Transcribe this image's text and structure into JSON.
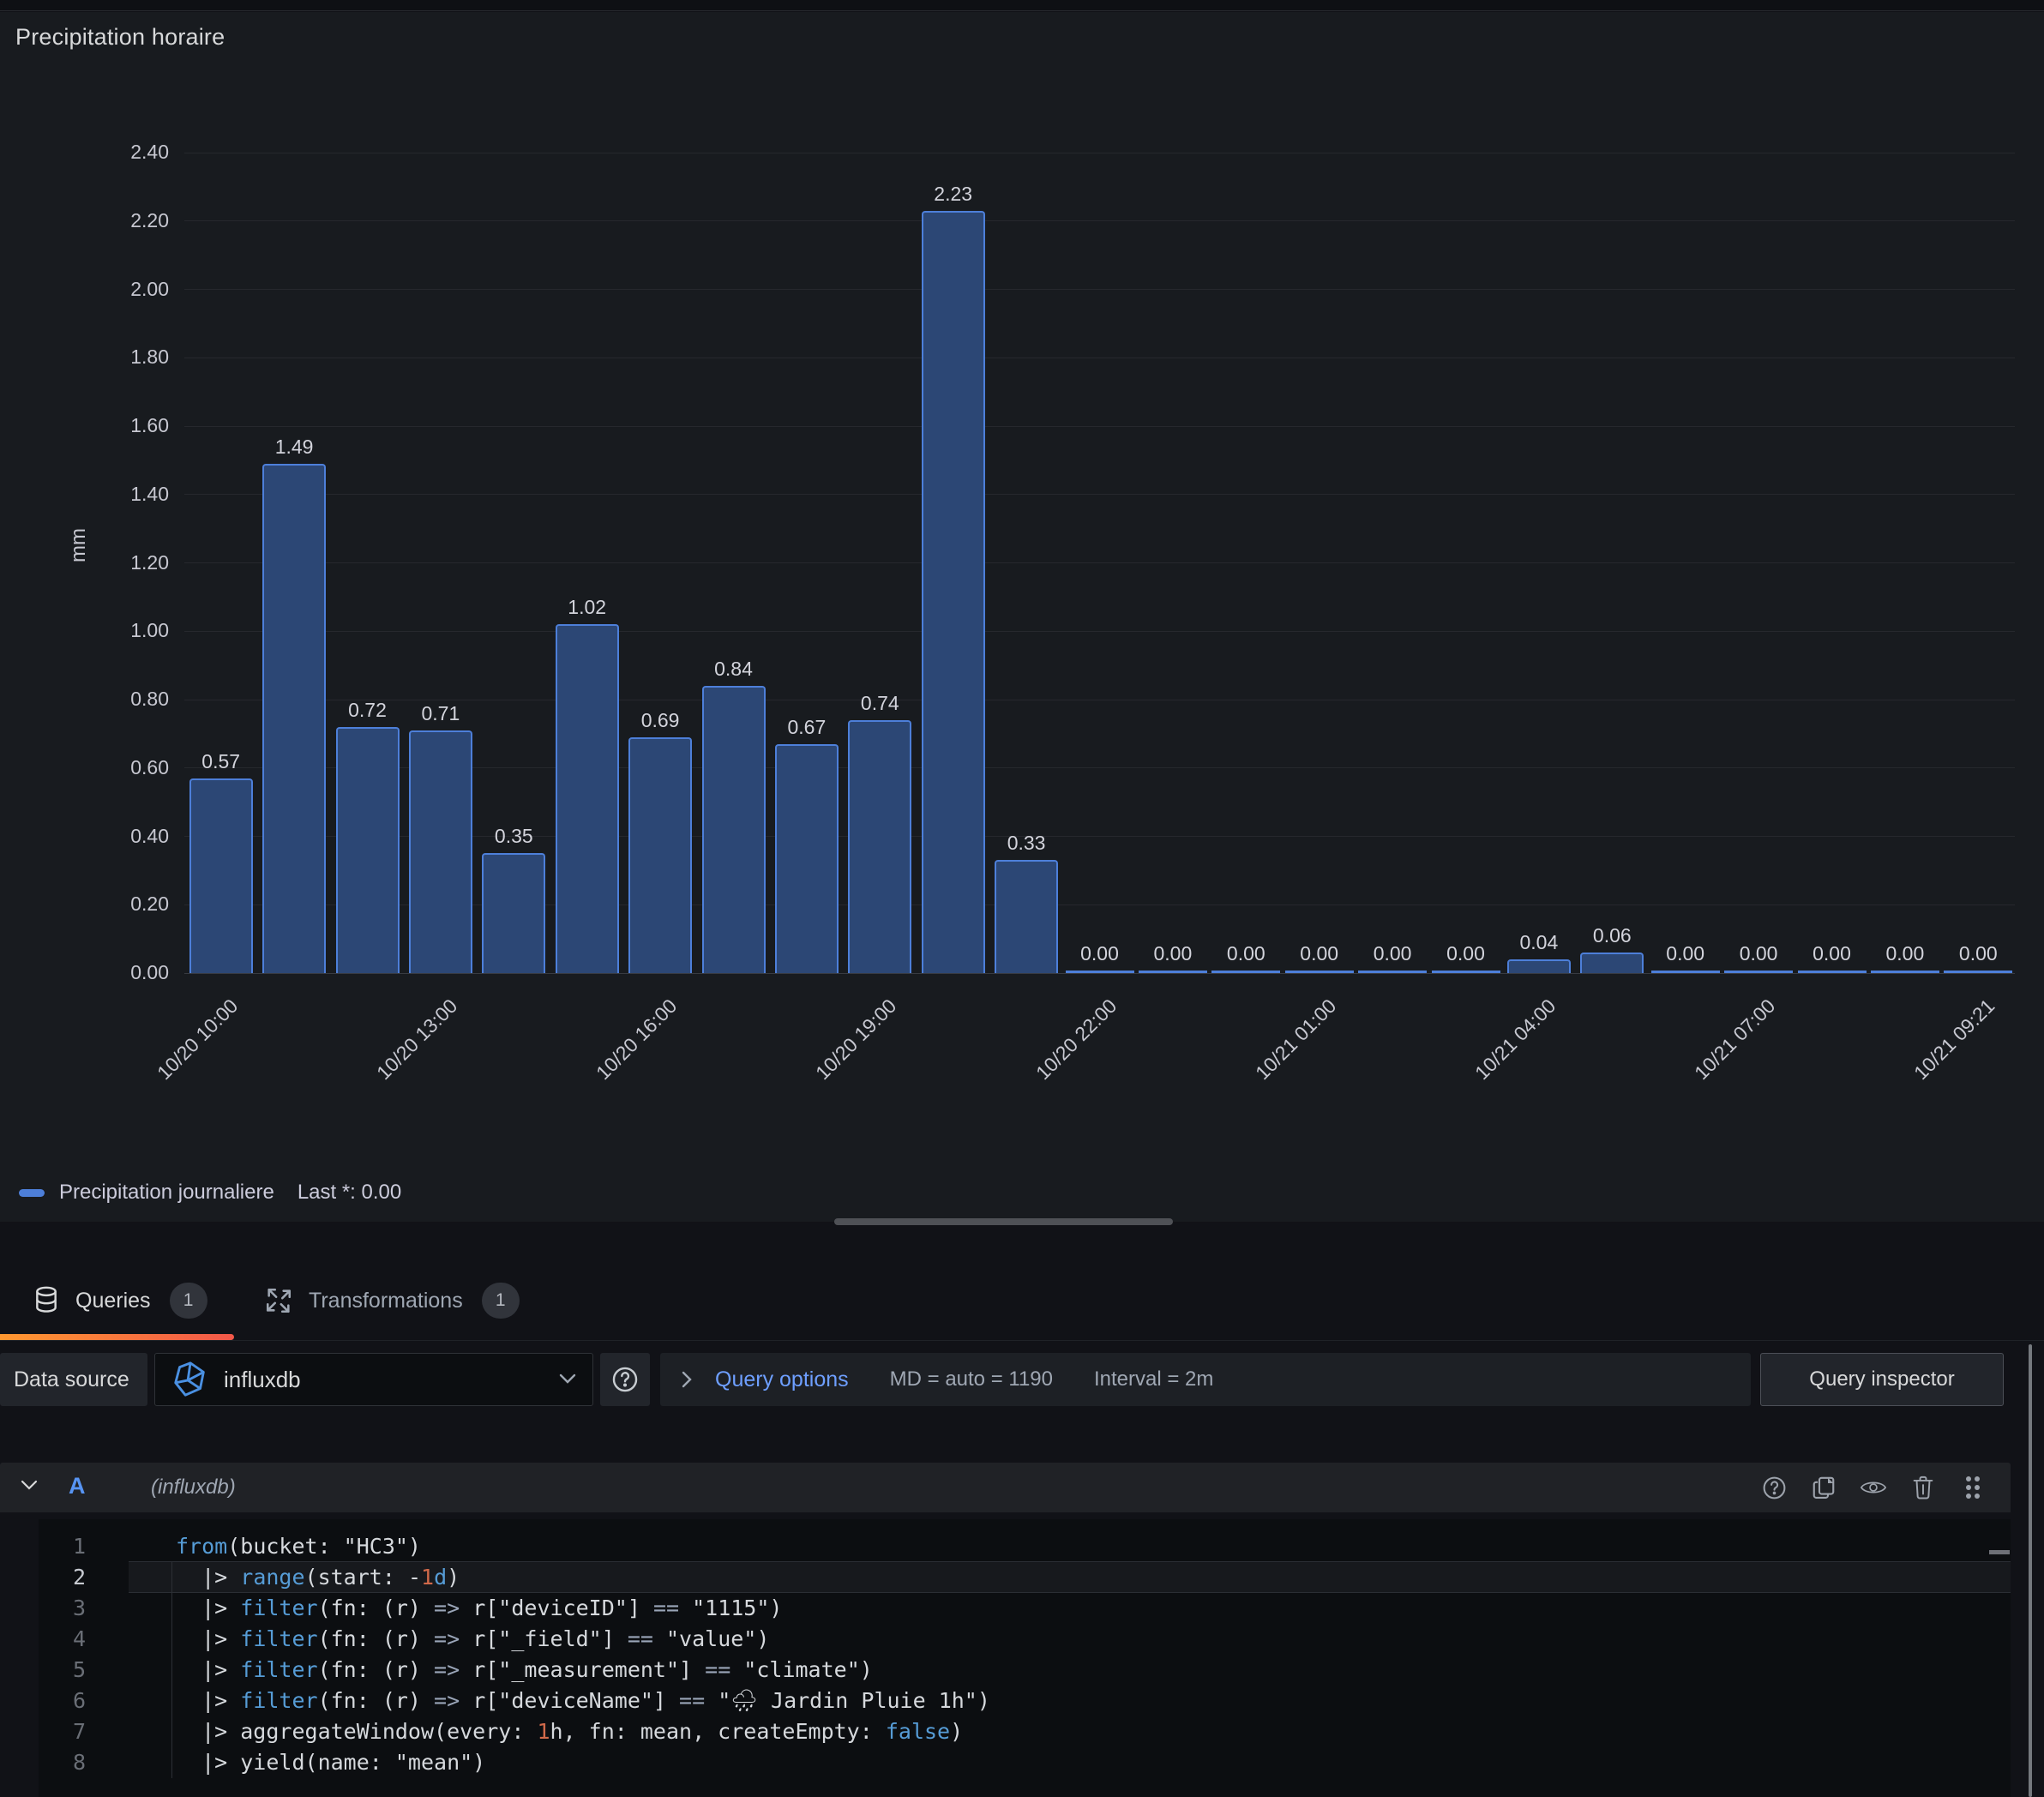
{
  "panel": {
    "title": "Precipitation horaire",
    "legend_label": "Precipitation journaliere",
    "legend_stat": "Last *: 0.00"
  },
  "chart_data": {
    "type": "bar",
    "title": "Precipitation horaire",
    "ylabel": "mm",
    "ylim": [
      0,
      2.4
    ],
    "y_ticks": [
      "2.40",
      "2.20",
      "2.00",
      "1.80",
      "1.60",
      "1.40",
      "1.20",
      "1.00",
      "0.80",
      "0.60",
      "0.40",
      "0.20",
      "0.00"
    ],
    "grid": true,
    "legend_position": "bottom-left",
    "series": [
      {
        "name": "Precipitation journaliere",
        "stat": "Last *: 0.00",
        "values": [
          0.57,
          1.49,
          0.72,
          0.71,
          0.35,
          1.02,
          0.69,
          0.84,
          0.67,
          0.74,
          2.23,
          0.33,
          0.0,
          0.0,
          0.0,
          0.0,
          0.0,
          0.0,
          0.04,
          0.06,
          0.0,
          0.0,
          0.0,
          0.0,
          0.0
        ],
        "value_labels": [
          "0.57",
          "1.49",
          "0.72",
          "0.71",
          "0.35",
          "1.02",
          "0.69",
          "0.84",
          "0.67",
          "0.74",
          "2.23",
          "0.33",
          "0.00",
          "0.00",
          "0.00",
          "0.00",
          "0.00",
          "0.00",
          "0.04",
          "0.06",
          "0.00",
          "0.00",
          "0.00",
          "0.00",
          "0.00"
        ]
      }
    ],
    "x_tick_indices": [
      0,
      3,
      6,
      9,
      12,
      15,
      18,
      21,
      24
    ],
    "x_tick_labels": [
      "10/20 10:00",
      "10/20 13:00",
      "10/20 16:00",
      "10/20 19:00",
      "10/20 22:00",
      "10/21 01:00",
      "10/21 04:00",
      "10/21 07:00",
      "10/21 09:21"
    ],
    "colors": {
      "bar_fill": "#2c4775",
      "bar_border": "#4d7fd9"
    }
  },
  "tabs": {
    "queries": {
      "label": "Queries",
      "badge": "1",
      "icon": "database-icon"
    },
    "transformations": {
      "label": "Transformations",
      "badge": "1",
      "icon": "transform-icon"
    }
  },
  "toolbar": {
    "datasource_label": "Data source",
    "datasource_value": "influxdb",
    "datasource_logo": "influxdb-logo",
    "help_icon": "question-circle-icon",
    "query_options_label": "Query options",
    "md_text": "MD = auto = 1190",
    "interval_text": "Interval = 2m",
    "inspector_label": "Query inspector"
  },
  "query": {
    "ref_id": "A",
    "datasource_hint": "(influxdb)",
    "toolbar_icons": [
      "question-circle-icon",
      "copy-icon",
      "eye-icon",
      "trash-icon",
      "drag-handle-icon"
    ],
    "active_line": 2,
    "lines": [
      {
        "n": "1",
        "tokens": [
          [
            "kw",
            "from"
          ],
          [
            "tx",
            "(bucket: \"HC3\")"
          ]
        ]
      },
      {
        "n": "2",
        "tokens": [
          [
            "tx",
            "  |> "
          ],
          [
            "kw",
            "range"
          ],
          [
            "tx",
            "(start: -"
          ],
          [
            "num",
            "1"
          ],
          [
            "kw",
            "d"
          ],
          [
            "tx",
            ")"
          ]
        ]
      },
      {
        "n": "3",
        "tokens": [
          [
            "tx",
            "  |> "
          ],
          [
            "kw",
            "filter"
          ],
          [
            "tx",
            "(fn: (r) "
          ],
          [
            "op",
            "=>"
          ],
          [
            "tx",
            " r[\"deviceID\"] "
          ],
          [
            "op",
            "=="
          ],
          [
            "tx",
            " \"1115\")"
          ]
        ]
      },
      {
        "n": "4",
        "tokens": [
          [
            "tx",
            "  |> "
          ],
          [
            "kw",
            "filter"
          ],
          [
            "tx",
            "(fn: (r) "
          ],
          [
            "op",
            "=>"
          ],
          [
            "tx",
            " r[\"_field\"] "
          ],
          [
            "op",
            "=="
          ],
          [
            "tx",
            " \"value\")"
          ]
        ]
      },
      {
        "n": "5",
        "tokens": [
          [
            "tx",
            "  |> "
          ],
          [
            "kw",
            "filter"
          ],
          [
            "tx",
            "(fn: (r) "
          ],
          [
            "op",
            "=>"
          ],
          [
            "tx",
            " r[\"_measurement\"] "
          ],
          [
            "op",
            "=="
          ],
          [
            "tx",
            " \"climate\")"
          ]
        ]
      },
      {
        "n": "6",
        "tokens": [
          [
            "tx",
            "  |> "
          ],
          [
            "kw",
            "filter"
          ],
          [
            "tx",
            "(fn: (r) "
          ],
          [
            "op",
            "=>"
          ],
          [
            "tx",
            " r[\"deviceName\"] "
          ],
          [
            "op",
            "=="
          ],
          [
            "tx",
            " \"🌧 Jardin Pluie 1h\")"
          ]
        ]
      },
      {
        "n": "7",
        "tokens": [
          [
            "tx",
            "  |> aggregateWindow(every: "
          ],
          [
            "num",
            "1"
          ],
          [
            "tx",
            "h, fn: mean, createEmpty: "
          ],
          [
            "kw",
            "false"
          ],
          [
            "tx",
            ")"
          ]
        ]
      },
      {
        "n": "8",
        "tokens": [
          [
            "tx",
            "  |> yield(name: \"mean\")"
          ]
        ]
      }
    ]
  }
}
